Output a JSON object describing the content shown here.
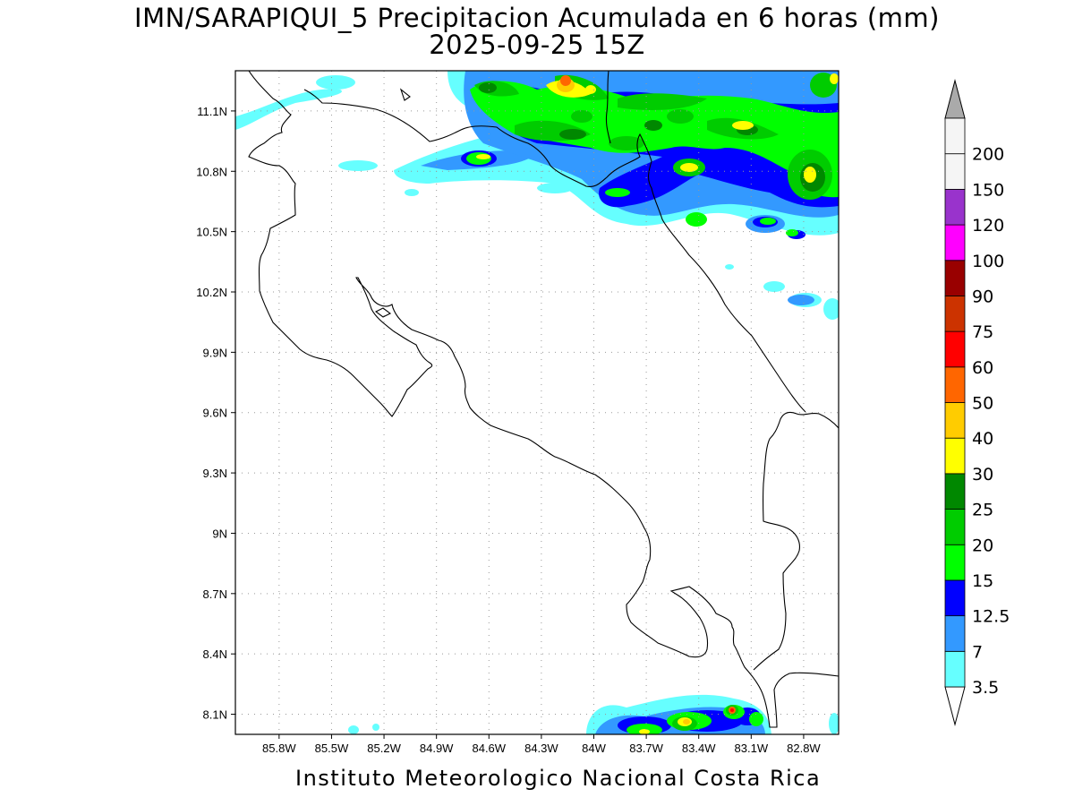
{
  "title": {
    "line1": "IMN/SARAPIQUI_5 Precipitacion Acumulada en 6 horas (mm)",
    "line2": "2025-09-25 15Z"
  },
  "footer": "Instituto Meteorologico Nacional Costa Rica",
  "map": {
    "lon_range": [
      -86.05,
      -82.6
    ],
    "lat_range": [
      8.0,
      11.3
    ],
    "lon_ticks": [
      "85.8W",
      "85.5W",
      "85.2W",
      "84.9W",
      "84.6W",
      "84.3W",
      "84W",
      "83.7W",
      "83.4W",
      "83.1W",
      "82.8W"
    ],
    "lat_ticks": [
      "8.1N",
      "8.4N",
      "8.7N",
      "9N",
      "9.3N",
      "9.6N",
      "9.9N",
      "10.2N",
      "10.5N",
      "10.8N",
      "11.1N"
    ],
    "grid": "dotted"
  },
  "colorbar": {
    "unit": "mm",
    "levels": [
      "3.5",
      "7",
      "12.5",
      "15",
      "20",
      "25",
      "30",
      "40",
      "50",
      "60",
      "75",
      "90",
      "100",
      "120",
      "150",
      "200"
    ],
    "colors": [
      "#66ffff",
      "#3399ff",
      "#0000ff",
      "#00ff00",
      "#00cc00",
      "#008800",
      "#ffff00",
      "#ffcc00",
      "#ff6600",
      "#ff0000",
      "#cc3300",
      "#990000",
      "#ff00ff",
      "#9933cc",
      "#f5f5f5",
      "#aaaaaa"
    ]
  }
}
